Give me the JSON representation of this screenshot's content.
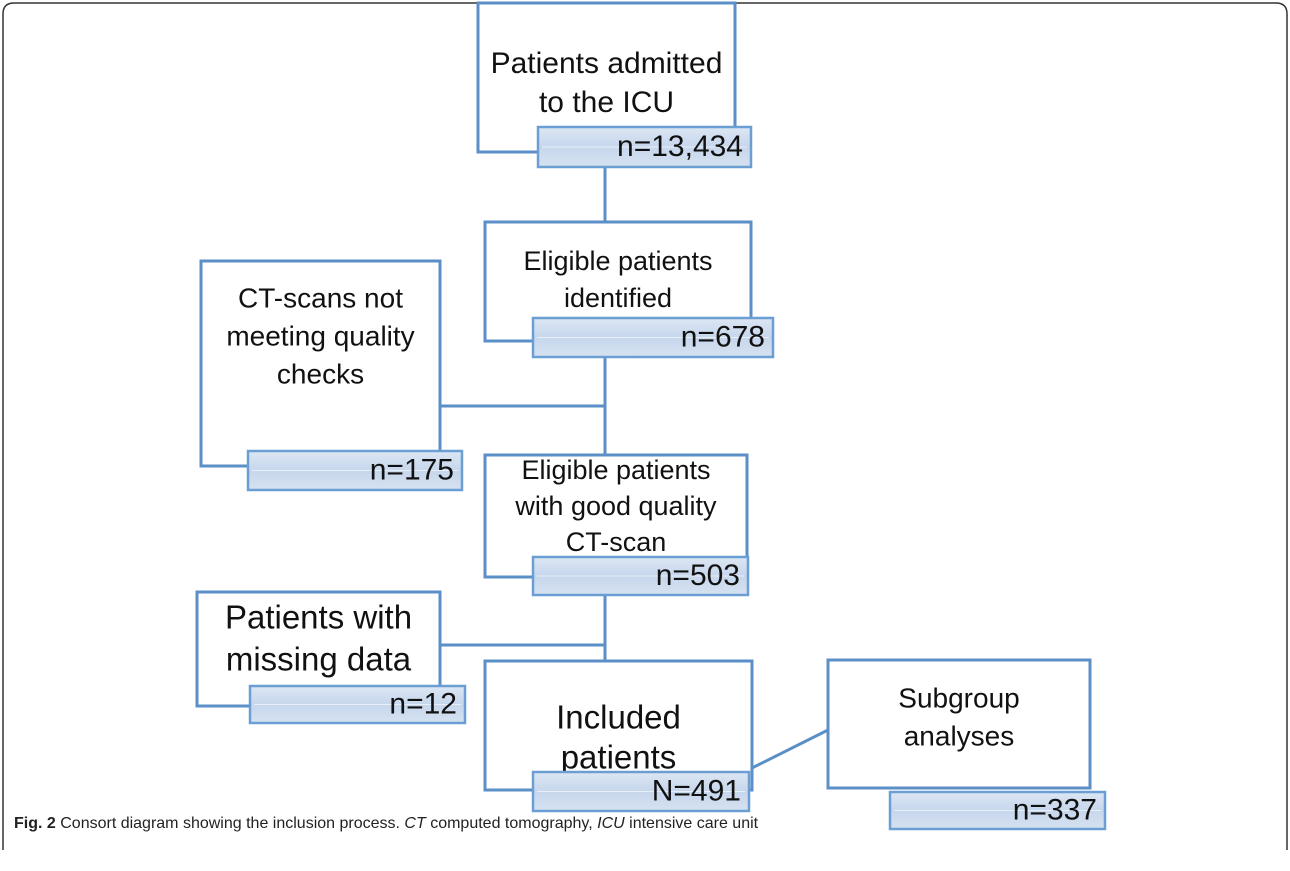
{
  "nodes": [
    {
      "lines": [
        "Patients admitted",
        "to the ICU"
      ],
      "count": "n=13,434"
    },
    {
      "lines": [
        "Eligible patients",
        "identified"
      ],
      "count": "n=678"
    },
    {
      "lines": [
        "CT-scans not",
        "meeting quality",
        "checks"
      ],
      "count": "n=175"
    },
    {
      "lines": [
        "Eligible patients",
        "with good quality",
        "CT-scan"
      ],
      "count": "n=503"
    },
    {
      "lines": [
        "Patients with",
        "missing data"
      ],
      "count": "n=12"
    },
    {
      "lines": [
        "Included",
        "patients"
      ],
      "count": "N=491"
    },
    {
      "lines": [
        "Subgroup",
        "analyses"
      ],
      "count": "n=337"
    }
  ],
  "caption": {
    "label": "Fig. 2",
    "text": "Consort diagram showing the inclusion process.",
    "abbreviations": [
      {
        "term": "CT",
        "definition": "computed tomography,"
      },
      {
        "term": "ICU",
        "definition": "intensive care unit"
      }
    ]
  }
}
